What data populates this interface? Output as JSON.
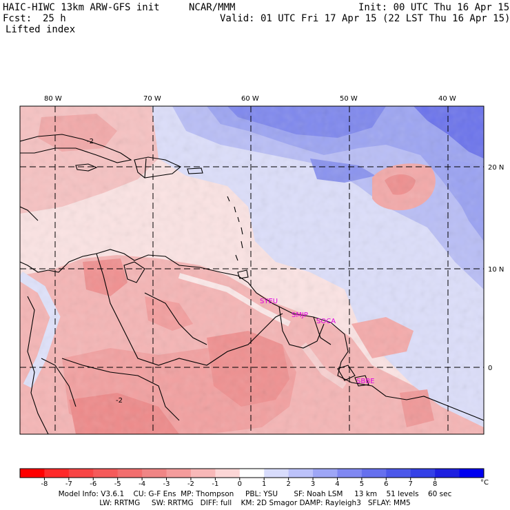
{
  "header": {
    "model_title": "HAIC-HIWC 13km ARW-GFS init",
    "org": "NCAR/MMM",
    "init": "Init: 00 UTC Thu 16 Apr 15",
    "fcst_label": "Fcst:",
    "fcst_value": "25 h",
    "valid": "Valid: 01 UTC Fri 17 Apr 15 (22 LST Thu 16 Apr 15)",
    "field": "Lifted index"
  },
  "map": {
    "lon_labels": [
      "80 W",
      "70 W",
      "60 W",
      "50 W",
      "40 W"
    ],
    "lat_labels": [
      "20 N",
      "10 N",
      "0"
    ],
    "contour_labels": [
      "-2",
      "-2"
    ],
    "stations": [
      "SYEU",
      "SMJP",
      "SOCA",
      "SBBE"
    ],
    "station_color": "#e000e0"
  },
  "colorbar": {
    "labels": [
      "-8",
      "-7",
      "-6",
      "-5",
      "-4",
      "-3",
      "-2",
      "-1",
      "0",
      "1",
      "2",
      "3",
      "4",
      "5",
      "6",
      "7",
      "8"
    ],
    "unit": "°C",
    "colors": [
      "#ff0000",
      "#ff2a2a",
      "#f84545",
      "#f55a5a",
      "#f26e6e",
      "#f08585",
      "#f49c9c",
      "#f8b8b8",
      "#fcd6d6",
      "#ffffff",
      "#d8dcfc",
      "#bcc2fa",
      "#9ea6f6",
      "#8088f2",
      "#6670ee",
      "#4c58ea",
      "#3440e6",
      "#1e20e0",
      "#0000f0"
    ]
  },
  "model_info": {
    "line1": "Model Info: V3.6.1    CU: G-F Ens  MP: Thompson     PBL: YSU       SF: Noah LSM     13 km    51 levels    60 sec",
    "line2": "LW: RRTMG     SW: RRTMG   DIFF: full    KM: 2D Smagor DAMP: Rayleigh3   SFLAY: MM5"
  }
}
